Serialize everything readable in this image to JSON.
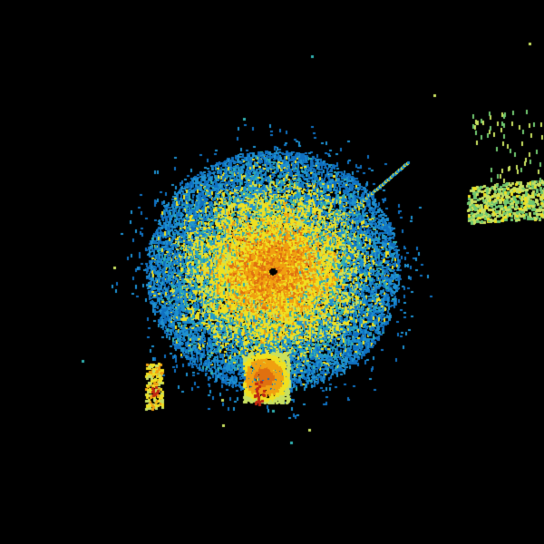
{
  "background": "#000000",
  "palette": {
    "light_blue": "#1e90d0",
    "blue": "#1070c0",
    "cyan": "#30b0b0",
    "green": "#70c870",
    "yellow_green": "#c8e060",
    "yellow": "#f0e020",
    "orange": "#f0a010",
    "dark_orange": "#e07010",
    "red": "#c02810"
  }
}
